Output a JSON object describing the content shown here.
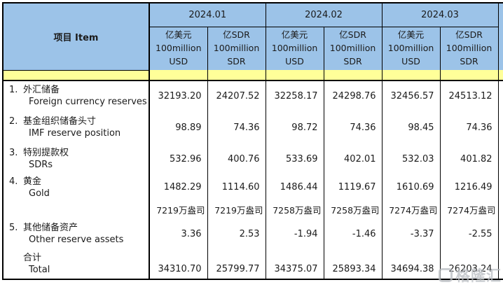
{
  "header": {
    "item": "项目  Item",
    "months": [
      "2024.01",
      "2024.02",
      "2024.03"
    ],
    "units": [
      "亿美元\n100million\nUSD",
      "亿SDR\n100million\nSDR",
      "亿美元\n100million\nUSD",
      "亿SDR\n100million\nSDR",
      "亿美元\n100million\nUSD",
      "亿SDR\n100million\nSDR"
    ]
  },
  "rows": [
    {
      "no": "1.",
      "zh": "外汇储备",
      "en": "Foreign currency reserves",
      "v": [
        "32193.20",
        "24207.52",
        "32258.17",
        "24298.76",
        "32456.57",
        "24513.12"
      ]
    },
    {
      "no": "2.",
      "zh": "基金组织储备头寸",
      "en": "IMF reserve position",
      "v": [
        "98.89",
        "74.36",
        "98.72",
        "74.36",
        "98.45",
        "74.36"
      ]
    },
    {
      "no": "3.",
      "zh": "特别提款权",
      "en": "SDRs",
      "v": [
        "532.96",
        "400.76",
        "533.69",
        "402.01",
        "532.03",
        "401.82"
      ]
    },
    {
      "no": "4.",
      "zh": "黄金",
      "en": "Gold",
      "v": [
        "1482.29",
        "1114.60",
        "1486.44",
        "1119.67",
        "1610.69",
        "1216.49"
      ]
    },
    {
      "no": "",
      "zh": "",
      "en": "",
      "v": [
        "7219万盎司",
        "7219万盎司",
        "7258万盎司",
        "7258万盎司",
        "7274万盎司",
        "7274万盎司"
      ]
    },
    {
      "no": "5.",
      "zh": "其他储备资产",
      "en": "Other reserve assets",
      "v": [
        "3.36",
        "2.53",
        "-1.94",
        "-1.46",
        "-3.37",
        "-2.55"
      ]
    },
    {
      "no": "",
      "zh": "合计",
      "en": "Total",
      "v": [
        "34310.70",
        "25799.77",
        "34375.07",
        "25893.34",
        "34694.38",
        "26203.24"
      ]
    }
  ],
  "watermark": "格隆汇",
  "colors": {
    "header_blue": "#9cc3e8",
    "band_yellow": "#ffff99",
    "border": "#000000"
  }
}
